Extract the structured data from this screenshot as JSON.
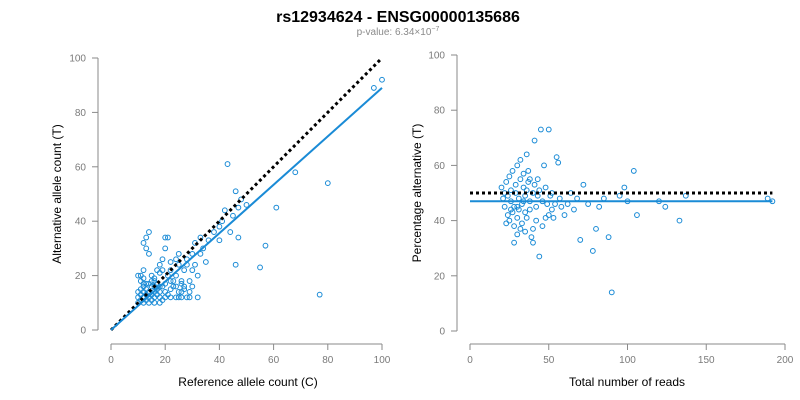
{
  "title": "rs12934624 - ENSG00000135686",
  "subtitle": {
    "prefix": "p-value: 6.34×10",
    "exponent": "−7"
  },
  "colors": {
    "points": "#1a8bd6",
    "fit_line": "#1a8bd6",
    "reference_line": "#000000",
    "axes": "#8a8a8a",
    "tick_labels": "#7a7a7a"
  },
  "chart_data": [
    {
      "type": "scatter",
      "xlabel": "Reference allele count (C)",
      "ylabel": "Alternative allele count (T)",
      "xlim": [
        0,
        100
      ],
      "ylim": [
        0,
        100
      ],
      "x_ticks": [
        0,
        20,
        40,
        60,
        80,
        100
      ],
      "y_ticks": [
        0,
        20,
        40,
        60,
        80,
        100
      ],
      "grid": false,
      "reference_line": {
        "style": "dotted",
        "color": "#000000",
        "points": [
          [
            0,
            0
          ],
          [
            100,
            100
          ]
        ]
      },
      "fit_line": {
        "style": "solid",
        "color": "#1a8bd6",
        "points": [
          [
            0,
            0
          ],
          [
            100,
            89
          ]
        ]
      },
      "points": [
        [
          10,
          10
        ],
        [
          10,
          12
        ],
        [
          11,
          11
        ],
        [
          11,
          13
        ],
        [
          12,
          10
        ],
        [
          12,
          12
        ],
        [
          12,
          14
        ],
        [
          12,
          16
        ],
        [
          13,
          11
        ],
        [
          13,
          13
        ],
        [
          13,
          15
        ],
        [
          14,
          12
        ],
        [
          14,
          10
        ],
        [
          14,
          14
        ],
        [
          15,
          11
        ],
        [
          15,
          13
        ],
        [
          15,
          16
        ],
        [
          16,
          12
        ],
        [
          16,
          14
        ],
        [
          16,
          10
        ],
        [
          17,
          13
        ],
        [
          17,
          15
        ],
        [
          18,
          12
        ],
        [
          18,
          14
        ],
        [
          19,
          11
        ],
        [
          19,
          16
        ],
        [
          20,
          12
        ],
        [
          20,
          14
        ],
        [
          21,
          13
        ],
        [
          22,
          12
        ],
        [
          22,
          15
        ],
        [
          23,
          16
        ],
        [
          24,
          12
        ],
        [
          25,
          14
        ],
        [
          26,
          12
        ],
        [
          27,
          15
        ],
        [
          28,
          12
        ],
        [
          29,
          14
        ],
        [
          30,
          16
        ],
        [
          32,
          12
        ],
        [
          10,
          20
        ],
        [
          11,
          18
        ],
        [
          12,
          19
        ],
        [
          12,
          22
        ],
        [
          12,
          32
        ],
        [
          13,
          34
        ],
        [
          13,
          30
        ],
        [
          14,
          36
        ],
        [
          14,
          28
        ],
        [
          15,
          20
        ],
        [
          16,
          19
        ],
        [
          16,
          18
        ],
        [
          17,
          22
        ],
        [
          18,
          21
        ],
        [
          18,
          24
        ],
        [
          19,
          22
        ],
        [
          19,
          26
        ],
        [
          20,
          30
        ],
        [
          20,
          34
        ],
        [
          21,
          34
        ],
        [
          22,
          22
        ],
        [
          22,
          25
        ],
        [
          23,
          18
        ],
        [
          24,
          20
        ],
        [
          25,
          24
        ],
        [
          25,
          28
        ],
        [
          26,
          17
        ],
        [
          27,
          22
        ],
        [
          28,
          26
        ],
        [
          29,
          18
        ],
        [
          30,
          22
        ],
        [
          30,
          28
        ],
        [
          31,
          24
        ],
        [
          31,
          32
        ],
        [
          32,
          20
        ],
        [
          33,
          28
        ],
        [
          33,
          34
        ],
        [
          34,
          30
        ],
        [
          35,
          25
        ],
        [
          36,
          33
        ],
        [
          38,
          36
        ],
        [
          40,
          38
        ],
        [
          40,
          33
        ],
        [
          41,
          40
        ],
        [
          42,
          44
        ],
        [
          43,
          61
        ],
        [
          44,
          36
        ],
        [
          45,
          42
        ],
        [
          46,
          51
        ],
        [
          46,
          24
        ],
        [
          47,
          45
        ],
        [
          47,
          34
        ],
        [
          48,
          48
        ],
        [
          50,
          46
        ],
        [
          55,
          23
        ],
        [
          57,
          31
        ],
        [
          61,
          45
        ],
        [
          68,
          58
        ],
        [
          77,
          13
        ],
        [
          80,
          54
        ],
        [
          97,
          89
        ],
        [
          100,
          92
        ],
        [
          24,
          16
        ],
        [
          26,
          18
        ],
        [
          17,
          17
        ],
        [
          22,
          18
        ],
        [
          27,
          16
        ],
        [
          21,
          20
        ],
        [
          11,
          15
        ],
        [
          13,
          17
        ],
        [
          15,
          18
        ],
        [
          24,
          26
        ],
        [
          28,
          24
        ],
        [
          14,
          17
        ],
        [
          16,
          16
        ],
        [
          18,
          16
        ],
        [
          20,
          17
        ],
        [
          12,
          17
        ],
        [
          10,
          14
        ],
        [
          11,
          20
        ],
        [
          25,
          12
        ],
        [
          26,
          14
        ],
        [
          29,
          12
        ],
        [
          18,
          10
        ]
      ]
    },
    {
      "type": "scatter",
      "xlabel": "Total number of reads",
      "ylabel": "Percentage alternative (T)",
      "xlim": [
        0,
        200
      ],
      "ylim": [
        0,
        100
      ],
      "x_ticks": [
        0,
        50,
        100,
        150,
        200
      ],
      "y_ticks": [
        0,
        20,
        40,
        60,
        80,
        100
      ],
      "grid": false,
      "reference_line": {
        "style": "dotted",
        "color": "#000000",
        "y": 50,
        "x_range": [
          0,
          192
        ]
      },
      "fit_line": {
        "style": "solid",
        "color": "#1a8bd6",
        "y": 47,
        "x_range": [
          0,
          192
        ]
      },
      "points": [
        [
          20,
          52
        ],
        [
          21,
          48
        ],
        [
          22,
          50
        ],
        [
          22,
          45
        ],
        [
          23,
          54
        ],
        [
          24,
          49
        ],
        [
          24,
          42
        ],
        [
          25,
          56
        ],
        [
          25,
          40
        ],
        [
          26,
          51
        ],
        [
          26,
          47
        ],
        [
          27,
          43
        ],
        [
          27,
          58
        ],
        [
          28,
          45
        ],
        [
          28,
          38
        ],
        [
          29,
          53
        ],
        [
          29,
          50
        ],
        [
          30,
          41
        ],
        [
          30,
          60
        ],
        [
          30,
          35
        ],
        [
          31,
          48
        ],
        [
          31,
          44
        ],
        [
          32,
          55
        ],
        [
          32,
          62
        ],
        [
          33,
          46
        ],
        [
          33,
          39
        ],
        [
          34,
          52
        ],
        [
          34,
          57
        ],
        [
          35,
          49
        ],
        [
          35,
          43
        ],
        [
          35,
          36
        ],
        [
          36,
          51
        ],
        [
          36,
          41
        ],
        [
          37,
          54
        ],
        [
          37,
          58
        ],
        [
          38,
          47
        ],
        [
          38,
          44
        ],
        [
          39,
          34
        ],
        [
          40,
          50
        ],
        [
          40,
          37
        ],
        [
          41,
          69
        ],
        [
          41,
          53
        ],
        [
          42,
          45
        ],
        [
          42,
          40
        ],
        [
          43,
          49
        ],
        [
          43,
          55
        ],
        [
          44,
          27
        ],
        [
          45,
          73
        ],
        [
          46,
          47
        ],
        [
          47,
          60
        ],
        [
          48,
          52
        ],
        [
          49,
          46
        ],
        [
          50,
          73
        ],
        [
          50,
          42
        ],
        [
          51,
          49
        ],
        [
          52,
          44
        ],
        [
          53,
          41
        ],
        [
          54,
          46
        ],
        [
          55,
          63
        ],
        [
          56,
          61
        ],
        [
          57,
          48
        ],
        [
          58,
          45
        ],
        [
          60,
          42
        ],
        [
          62,
          46
        ],
        [
          64,
          50
        ],
        [
          66,
          44
        ],
        [
          68,
          48
        ],
        [
          70,
          33
        ],
        [
          72,
          53
        ],
        [
          75,
          46
        ],
        [
          78,
          29
        ],
        [
          80,
          37
        ],
        [
          82,
          45
        ],
        [
          85,
          48
        ],
        [
          88,
          34
        ],
        [
          90,
          14
        ],
        [
          95,
          49
        ],
        [
          98,
          52
        ],
        [
          100,
          47
        ],
        [
          104,
          58
        ],
        [
          106,
          42
        ],
        [
          120,
          47
        ],
        [
          124,
          45
        ],
        [
          133,
          40
        ],
        [
          137,
          49
        ],
        [
          189,
          48
        ],
        [
          192,
          47
        ],
        [
          23,
          39
        ],
        [
          28,
          32
        ],
        [
          32,
          37
        ],
        [
          36,
          64
        ],
        [
          40,
          32
        ],
        [
          46,
          38
        ],
        [
          26,
          44
        ],
        [
          34,
          47
        ],
        [
          38,
          55
        ],
        [
          44,
          51
        ],
        [
          48,
          41
        ],
        [
          30,
          45
        ],
        [
          52,
          50
        ]
      ]
    }
  ]
}
